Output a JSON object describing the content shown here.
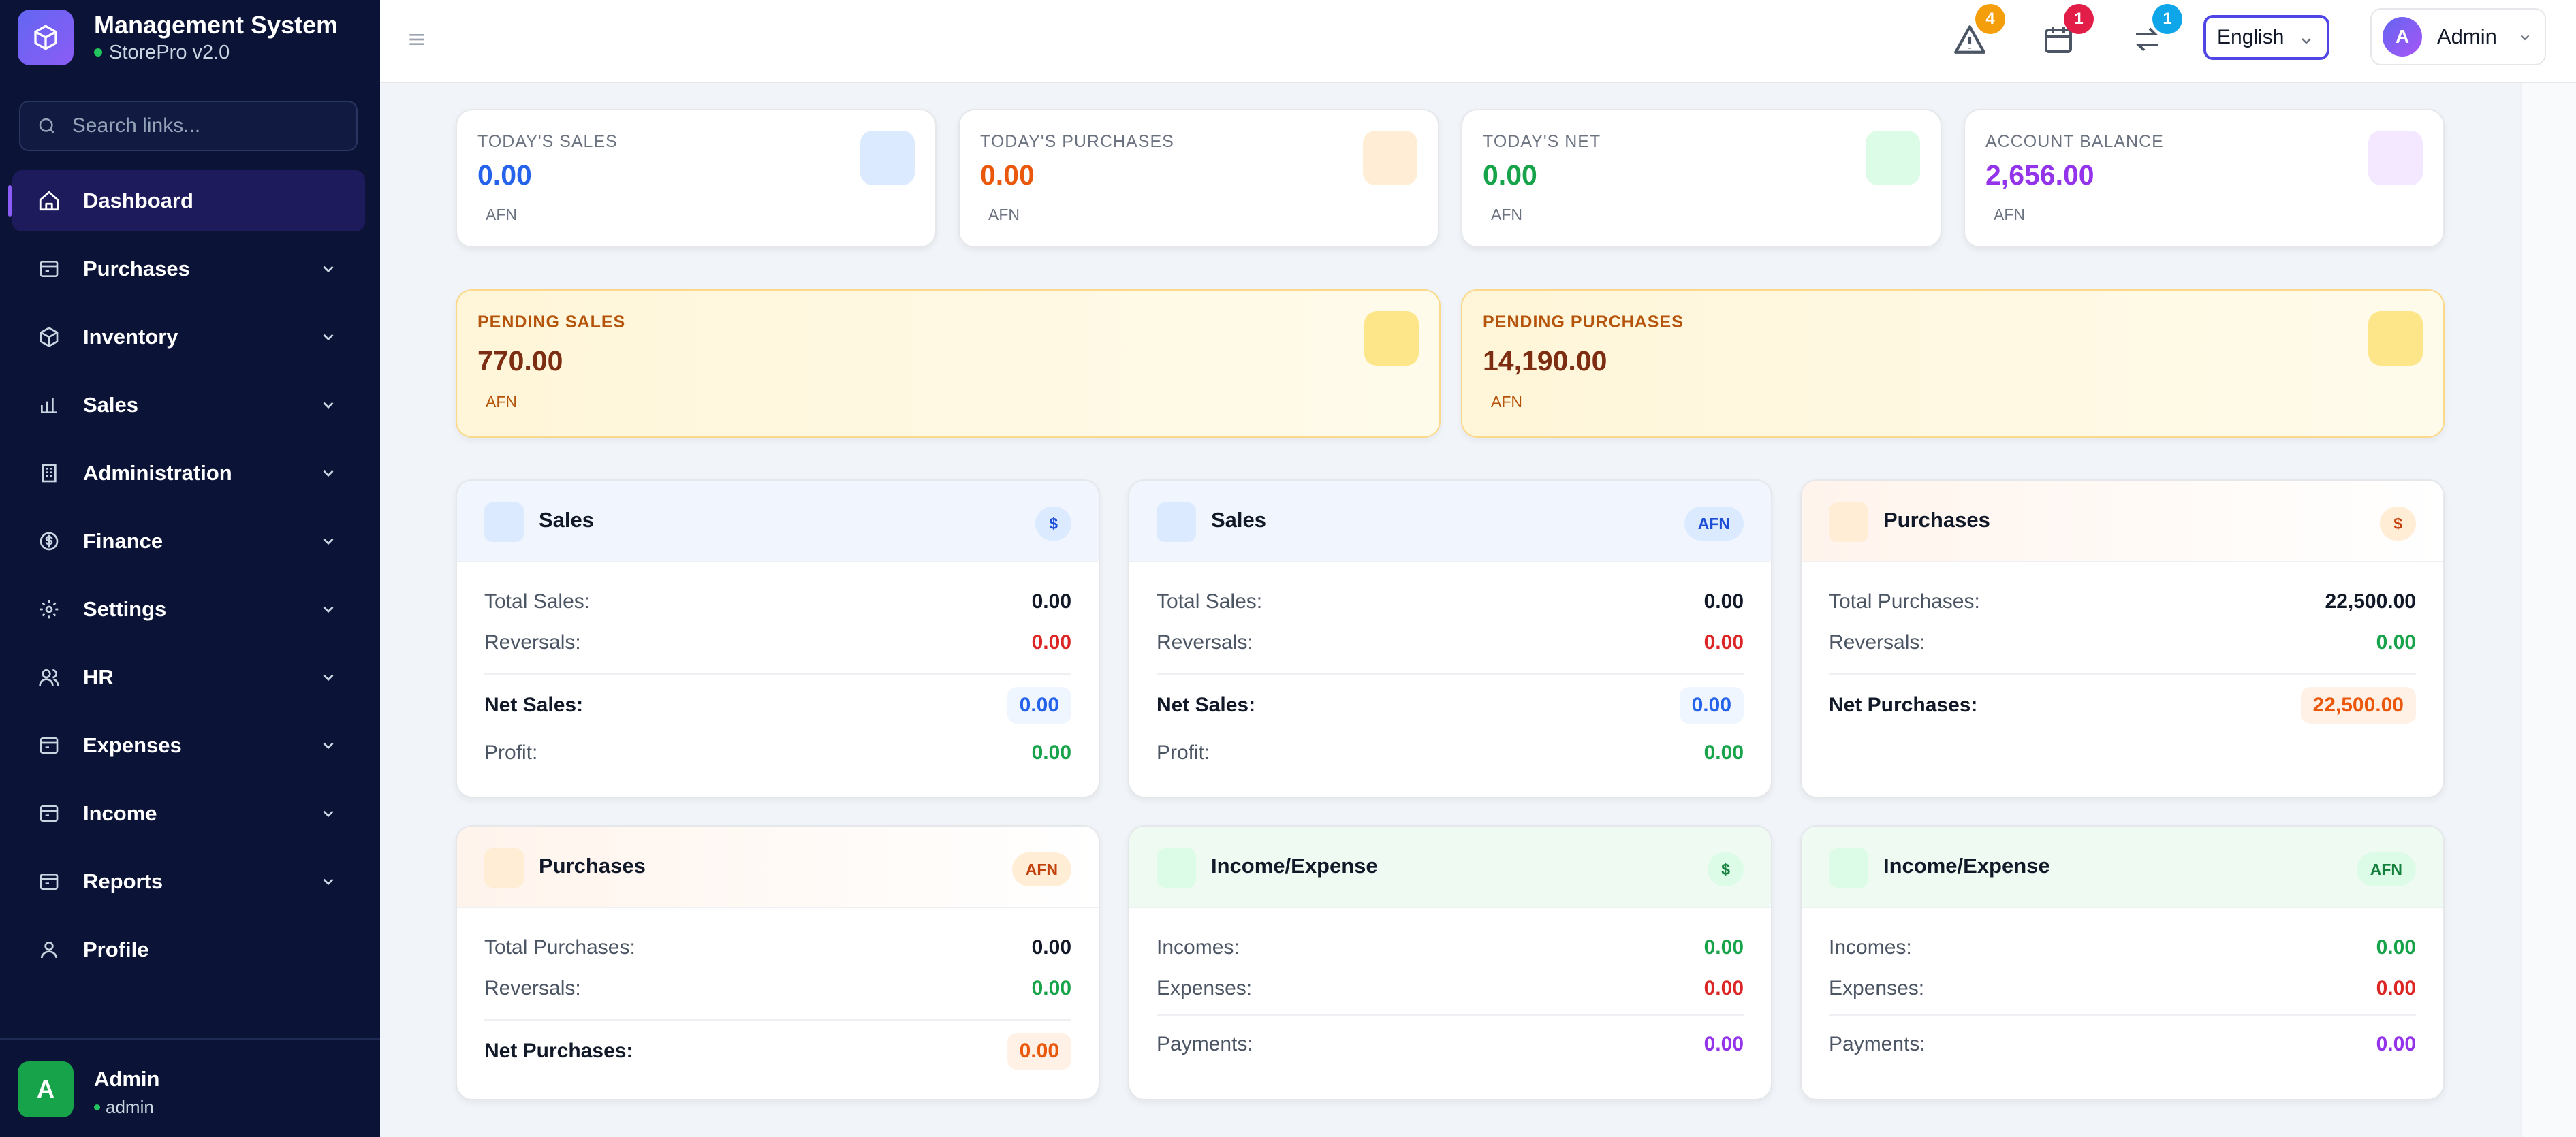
{
  "brand": {
    "title": "Management System",
    "subtitle": "StorePro v2.0"
  },
  "search": {
    "placeholder": "Search links..."
  },
  "nav": [
    {
      "label": "Dashboard",
      "icon": "home-icon",
      "active": true
    },
    {
      "label": "Purchases",
      "icon": "purchases-icon"
    },
    {
      "label": "Inventory",
      "icon": "box-icon"
    },
    {
      "label": "Sales",
      "icon": "bar-chart-icon"
    },
    {
      "label": "Administration",
      "icon": "building-icon"
    },
    {
      "label": "Finance",
      "icon": "dollar-icon"
    },
    {
      "label": "Settings",
      "icon": "gear-icon"
    },
    {
      "label": "HR",
      "icon": "users-icon"
    },
    {
      "label": "Expenses",
      "icon": "expenses-icon"
    },
    {
      "label": "Income",
      "icon": "income-icon"
    },
    {
      "label": "Reports",
      "icon": "reports-icon"
    },
    {
      "label": "Profile",
      "icon": "user-icon"
    }
  ],
  "sidebar_user": {
    "initial": "A",
    "name": "Admin",
    "role": "admin"
  },
  "topbar": {
    "alerts_count": "4",
    "calendar_count": "1",
    "transfers_count": "1",
    "language": "English",
    "user_initial": "A",
    "user_name": "Admin"
  },
  "stats": {
    "today_sales": {
      "label": "TODAY'S SALES",
      "value": "0.00",
      "currency": "AFN"
    },
    "today_purchases": {
      "label": "TODAY'S PURCHASES",
      "value": "0.00",
      "currency": "AFN"
    },
    "today_net": {
      "label": "TODAY'S NET",
      "value": "0.00",
      "currency": "AFN"
    },
    "account_balance": {
      "label": "ACCOUNT BALANCE",
      "value": "2,656.00",
      "currency": "AFN"
    },
    "pending_sales": {
      "label": "PENDING SALES",
      "value": "770.00",
      "currency": "AFN"
    },
    "pending_purchases": {
      "label": "PENDING PURCHASES",
      "value": "14,190.00",
      "currency": "AFN"
    }
  },
  "summary": {
    "sales_usd": {
      "title": "Sales",
      "pill": "$",
      "rows": {
        "total_label": "Total Sales:",
        "total": "0.00",
        "rev_label": "Reversals:",
        "rev": "0.00",
        "net_label": "Net Sales:",
        "net": "0.00",
        "profit_label": "Profit:",
        "profit": "0.00"
      }
    },
    "sales_afn": {
      "title": "Sales",
      "pill": "AFN",
      "rows": {
        "total_label": "Total Sales:",
        "total": "0.00",
        "rev_label": "Reversals:",
        "rev": "0.00",
        "net_label": "Net Sales:",
        "net": "0.00",
        "profit_label": "Profit:",
        "profit": "0.00"
      }
    },
    "purchases_usd": {
      "title": "Purchases",
      "pill": "$",
      "rows": {
        "total_label": "Total Purchases:",
        "total": "22,500.00",
        "rev_label": "Reversals:",
        "rev": "0.00",
        "net_label": "Net Purchases:",
        "net": "22,500.00"
      }
    },
    "purchases_afn": {
      "title": "Purchases",
      "pill": "AFN",
      "rows": {
        "total_label": "Total Purchases:",
        "total": "0.00",
        "rev_label": "Reversals:",
        "rev": "0.00",
        "net_label": "Net Purchases:",
        "net": "0.00"
      }
    },
    "income_usd": {
      "title": "Income/Expense",
      "pill": "$",
      "rows": {
        "inc_label": "Incomes:",
        "inc": "0.00",
        "exp_label": "Expenses:",
        "exp": "0.00",
        "pay_label": "Payments:",
        "pay": "0.00"
      }
    },
    "income_afn": {
      "title": "Income/Expense",
      "pill": "AFN",
      "rows": {
        "inc_label": "Incomes:",
        "inc": "0.00",
        "exp_label": "Expenses:",
        "exp": "0.00",
        "pay_label": "Payments:",
        "pay": "0.00"
      }
    }
  },
  "colors": {
    "sidebar_bg": "#0b1437",
    "accent": "#4f46e5",
    "blue": "#2563eb",
    "orange": "#ea580c",
    "green": "#16a34a",
    "red": "#dc2626",
    "purple": "#9333ea"
  }
}
